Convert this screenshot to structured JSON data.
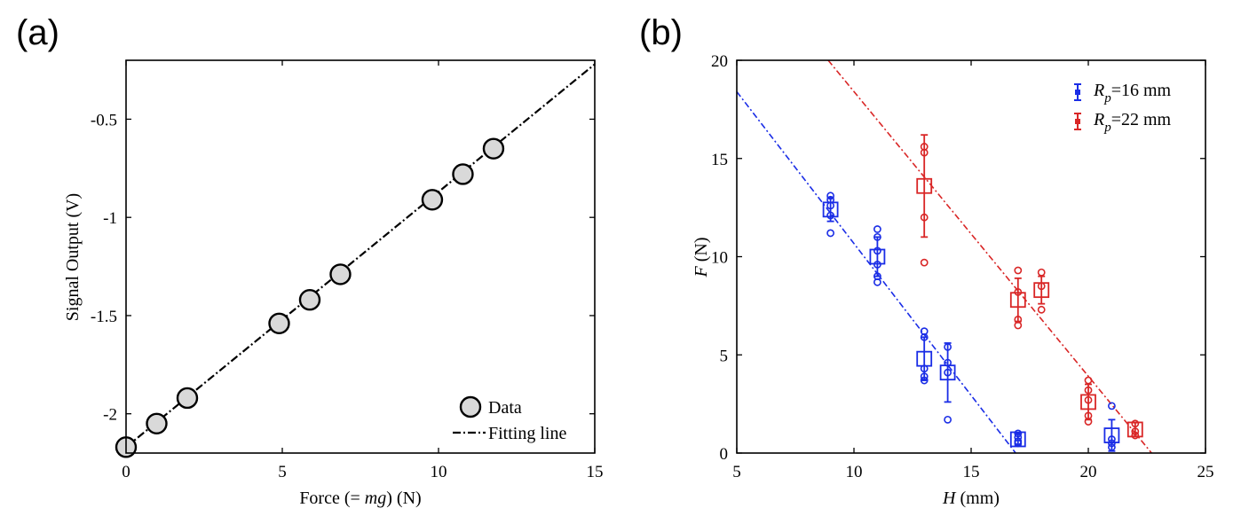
{
  "chart_data": [
    {
      "panel_label": "(a)",
      "type": "scatter",
      "xlabel": "Force (= mg) (N)",
      "xlabel_parts": [
        "Force (= ",
        "mg",
        ") (N)"
      ],
      "ylabel": "Signal Output (V)",
      "xlim": [
        0,
        15
      ],
      "ylim": [
        -2.2,
        -0.2
      ],
      "xticks": [
        0,
        5,
        10,
        15
      ],
      "xtick_labels": [
        "0",
        "5",
        "10",
        "15"
      ],
      "yticks": [
        -2,
        -1.5,
        -1,
        -0.5
      ],
      "ytick_labels": [
        "-2",
        "-1.5",
        "-1",
        "-0.5"
      ],
      "legend": [
        "Data",
        "Fitting line"
      ],
      "legend_position": "bottom-right",
      "series": [
        {
          "name": "Data",
          "color": "#d9d9d9",
          "points": [
            [
              0,
              -2.17
            ],
            [
              0.98,
              -2.05
            ],
            [
              1.96,
              -1.92
            ],
            [
              4.9,
              -1.54
            ],
            [
              5.88,
              -1.42
            ],
            [
              6.86,
              -1.29
            ],
            [
              9.8,
              -0.91
            ],
            [
              10.78,
              -0.78
            ],
            [
              11.76,
              -0.65
            ]
          ]
        },
        {
          "name": "Fitting line",
          "color": "#000000",
          "line": [
            [
              0,
              -2.17
            ],
            [
              15,
              -0.22
            ]
          ]
        }
      ]
    },
    {
      "panel_label": "(b)",
      "type": "scatter",
      "xlabel": "H (mm)",
      "xlabel_parts": [
        "H",
        " (mm)"
      ],
      "ylabel": "F (N)",
      "ylabel_parts": [
        "F",
        " (N)"
      ],
      "xlim": [
        5,
        25
      ],
      "ylim": [
        0,
        20
      ],
      "xticks": [
        5,
        10,
        15,
        20,
        25
      ],
      "xtick_labels": [
        "5",
        "10",
        "15",
        "20",
        "25"
      ],
      "yticks": [
        0,
        5,
        10,
        15,
        20
      ],
      "ytick_labels": [
        "0",
        "5",
        "10",
        "15",
        "20"
      ],
      "legend_position": "top-right",
      "series": [
        {
          "name": "R_p=16 mm",
          "legend_main": "R",
          "legend_sub": "p",
          "legend_rest": "=16 mm",
          "color": "#1a2de6",
          "means": [
            [
              9,
              12.4,
              0.6
            ],
            [
              11,
              10.0,
              1.0
            ],
            [
              13,
              4.8,
              1.1
            ],
            [
              14,
              4.1,
              1.5
            ],
            [
              17,
              0.7,
              0.3
            ],
            [
              21,
              0.9,
              0.8
            ]
          ],
          "raw": [
            [
              9,
              13.1
            ],
            [
              9,
              12.9
            ],
            [
              9,
              12.6
            ],
            [
              9,
              12.1
            ],
            [
              9,
              11.2
            ],
            [
              11,
              11.4
            ],
            [
              11,
              11.0
            ],
            [
              11,
              10.3
            ],
            [
              11,
              9.6
            ],
            [
              11,
              9.0
            ],
            [
              11,
              8.7
            ],
            [
              13,
              6.2
            ],
            [
              13,
              5.9
            ],
            [
              13,
              4.3
            ],
            [
              13,
              3.9
            ],
            [
              13,
              3.7
            ],
            [
              14,
              5.4
            ],
            [
              14,
              4.6
            ],
            [
              14,
              4.1
            ],
            [
              14,
              1.7
            ],
            [
              17,
              1.0
            ],
            [
              17,
              0.8
            ],
            [
              17,
              0.6
            ],
            [
              17,
              0.5
            ],
            [
              21,
              2.4
            ],
            [
              21,
              0.7
            ],
            [
              21,
              0.5
            ],
            [
              21,
              0.3
            ]
          ],
          "fit": [
            [
              5,
              18.4
            ],
            [
              16.9,
              0
            ]
          ]
        },
        {
          "name": "R_p=22 mm",
          "legend_main": "R",
          "legend_sub": "p",
          "legend_rest": "=22 mm",
          "color": "#d92626",
          "means": [
            [
              13,
              13.6,
              2.6
            ],
            [
              17,
              7.8,
              1.1
            ],
            [
              18,
              8.3,
              0.7
            ],
            [
              20,
              2.6,
              0.9
            ],
            [
              22,
              1.2,
              0.35
            ]
          ],
          "raw": [
            [
              13,
              15.6
            ],
            [
              13,
              15.3
            ],
            [
              13,
              12.0
            ],
            [
              13,
              9.7
            ],
            [
              17,
              9.3
            ],
            [
              17,
              8.2
            ],
            [
              17,
              6.8
            ],
            [
              17,
              6.5
            ],
            [
              18,
              9.2
            ],
            [
              18,
              8.5
            ],
            [
              18,
              7.3
            ],
            [
              20,
              3.7
            ],
            [
              20,
              3.2
            ],
            [
              20,
              2.7
            ],
            [
              20,
              1.9
            ],
            [
              20,
              1.6
            ],
            [
              22,
              1.5
            ],
            [
              22,
              1.1
            ],
            [
              22,
              0.9
            ]
          ],
          "fit": [
            [
              8.9,
              20
            ],
            [
              22.7,
              0
            ]
          ]
        }
      ]
    }
  ]
}
